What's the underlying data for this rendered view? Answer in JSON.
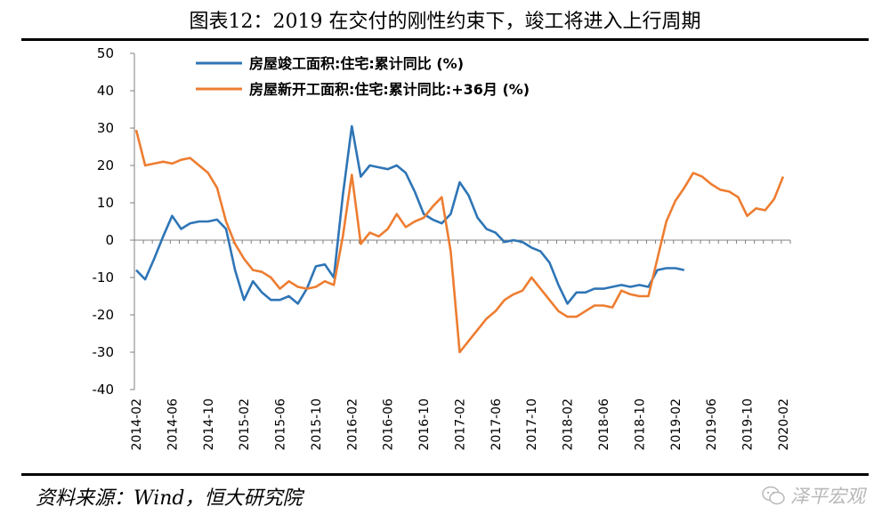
{
  "title": "图表12：2019 在交付的刚性约束下，竣工将进入上行周期",
  "source": "资料来源：Wind，恒大研究院",
  "watermark": "泽平宏观",
  "chart_data": {
    "type": "line",
    "ylim": [
      -40,
      50
    ],
    "yticks": [
      -40,
      -30,
      -20,
      -10,
      0,
      10,
      20,
      30,
      40,
      50
    ],
    "xlabels": [
      "2014-02",
      "2014-06",
      "2014-10",
      "2015-02",
      "2015-06",
      "2015-10",
      "2016-02",
      "2016-06",
      "2016-10",
      "2017-02",
      "2017-06",
      "2017-10",
      "2018-02",
      "2018-06",
      "2018-10",
      "2019-02",
      "2019-06",
      "2019-10",
      "2020-02"
    ],
    "x_start": "2014-02",
    "legend_position": "top-left",
    "grid": false,
    "series": [
      {
        "name": "房屋竣工面积:住宅:累计同比 (%)",
        "color": "#2E75B6",
        "points": [
          [
            "2014-02",
            -8
          ],
          [
            "2014-03",
            -10.5
          ],
          [
            "2014-04",
            -5
          ],
          [
            "2014-05",
            1
          ],
          [
            "2014-06",
            6.5
          ],
          [
            "2014-07",
            3
          ],
          [
            "2014-08",
            4.5
          ],
          [
            "2014-09",
            5
          ],
          [
            "2014-10",
            5
          ],
          [
            "2014-11",
            5.5
          ],
          [
            "2014-12",
            3
          ],
          [
            "2015-01",
            -8
          ],
          [
            "2015-02",
            -16
          ],
          [
            "2015-03",
            -11
          ],
          [
            "2015-04",
            -14
          ],
          [
            "2015-05",
            -16
          ],
          [
            "2015-06",
            -16
          ],
          [
            "2015-07",
            -15
          ],
          [
            "2015-08",
            -17
          ],
          [
            "2015-09",
            -13
          ],
          [
            "2015-10",
            -7
          ],
          [
            "2015-11",
            -6.5
          ],
          [
            "2015-12",
            -10
          ],
          [
            "2016-01",
            12
          ],
          [
            "2016-02",
            30.5
          ],
          [
            "2016-03",
            17
          ],
          [
            "2016-04",
            20
          ],
          [
            "2016-05",
            19.5
          ],
          [
            "2016-06",
            19
          ],
          [
            "2016-07",
            20
          ],
          [
            "2016-08",
            18
          ],
          [
            "2016-09",
            13
          ],
          [
            "2016-10",
            7
          ],
          [
            "2016-11",
            5.5
          ],
          [
            "2016-12",
            4.5
          ],
          [
            "2017-01",
            7
          ],
          [
            "2017-02",
            15.5
          ],
          [
            "2017-03",
            12
          ],
          [
            "2017-04",
            6
          ],
          [
            "2017-05",
            3
          ],
          [
            "2017-06",
            2
          ],
          [
            "2017-07",
            -0.5
          ],
          [
            "2017-08",
            0
          ],
          [
            "2017-09",
            -0.5
          ],
          [
            "2017-10",
            -2
          ],
          [
            "2017-11",
            -3
          ],
          [
            "2017-12",
            -6
          ],
          [
            "2018-01",
            -12
          ],
          [
            "2018-02",
            -17
          ],
          [
            "2018-03",
            -14
          ],
          [
            "2018-04",
            -14
          ],
          [
            "2018-05",
            -13
          ],
          [
            "2018-06",
            -13
          ],
          [
            "2018-07",
            -12.5
          ],
          [
            "2018-08",
            -12
          ],
          [
            "2018-09",
            -12.5
          ],
          [
            "2018-10",
            -12
          ],
          [
            "2018-11",
            -12.5
          ],
          [
            "2018-12",
            -8
          ],
          [
            "2019-01",
            -7.5
          ],
          [
            "2019-02",
            -7.5
          ],
          [
            "2019-03",
            -8
          ]
        ]
      },
      {
        "name": "房屋新开工面积:住宅:累计同比:+36月 (%)",
        "color": "#ED7D31",
        "points": [
          [
            "2014-02",
            29.5
          ],
          [
            "2014-03",
            20
          ],
          [
            "2014-04",
            20.5
          ],
          [
            "2014-05",
            21
          ],
          [
            "2014-06",
            20.5
          ],
          [
            "2014-07",
            21.5
          ],
          [
            "2014-08",
            22
          ],
          [
            "2014-09",
            20
          ],
          [
            "2014-10",
            18
          ],
          [
            "2014-11",
            14
          ],
          [
            "2014-12",
            5
          ],
          [
            "2015-01",
            -1
          ],
          [
            "2015-02",
            -5
          ],
          [
            "2015-03",
            -8
          ],
          [
            "2015-04",
            -8.5
          ],
          [
            "2015-05",
            -10
          ],
          [
            "2015-06",
            -13
          ],
          [
            "2015-07",
            -11
          ],
          [
            "2015-08",
            -12.5
          ],
          [
            "2015-09",
            -13
          ],
          [
            "2015-10",
            -12.5
          ],
          [
            "2015-11",
            -11
          ],
          [
            "2015-12",
            -12
          ],
          [
            "2016-01",
            1
          ],
          [
            "2016-02",
            17.5
          ],
          [
            "2016-03",
            -1
          ],
          [
            "2016-04",
            2
          ],
          [
            "2016-05",
            1
          ],
          [
            "2016-06",
            3
          ],
          [
            "2016-07",
            7
          ],
          [
            "2016-08",
            3.5
          ],
          [
            "2016-09",
            5
          ],
          [
            "2016-10",
            6
          ],
          [
            "2016-11",
            9
          ],
          [
            "2016-12",
            11.5
          ],
          [
            "2017-01",
            -3
          ],
          [
            "2017-02",
            -30
          ],
          [
            "2017-03",
            -27
          ],
          [
            "2017-04",
            -24
          ],
          [
            "2017-05",
            -21
          ],
          [
            "2017-06",
            -19
          ],
          [
            "2017-07",
            -16
          ],
          [
            "2017-08",
            -14.5
          ],
          [
            "2017-09",
            -13.5
          ],
          [
            "2017-10",
            -10
          ],
          [
            "2017-11",
            -13
          ],
          [
            "2017-12",
            -16
          ],
          [
            "2018-01",
            -19
          ],
          [
            "2018-02",
            -20.5
          ],
          [
            "2018-03",
            -20.5
          ],
          [
            "2018-04",
            -19
          ],
          [
            "2018-05",
            -17.5
          ],
          [
            "2018-06",
            -17.5
          ],
          [
            "2018-07",
            -18
          ],
          [
            "2018-08",
            -13.5
          ],
          [
            "2018-09",
            -14.5
          ],
          [
            "2018-10",
            -15
          ],
          [
            "2018-11",
            -15
          ],
          [
            "2018-12",
            -5
          ],
          [
            "2019-01",
            5
          ],
          [
            "2019-02",
            10.5
          ],
          [
            "2019-03",
            14
          ],
          [
            "2019-04",
            18
          ],
          [
            "2019-05",
            17
          ],
          [
            "2019-06",
            15
          ],
          [
            "2019-07",
            13.5
          ],
          [
            "2019-08",
            13
          ],
          [
            "2019-09",
            11.5
          ],
          [
            "2019-10",
            6.5
          ],
          [
            "2019-11",
            8.5
          ],
          [
            "2019-12",
            8
          ],
          [
            "2020-01",
            11
          ],
          [
            "2020-02",
            17
          ]
        ]
      }
    ]
  }
}
